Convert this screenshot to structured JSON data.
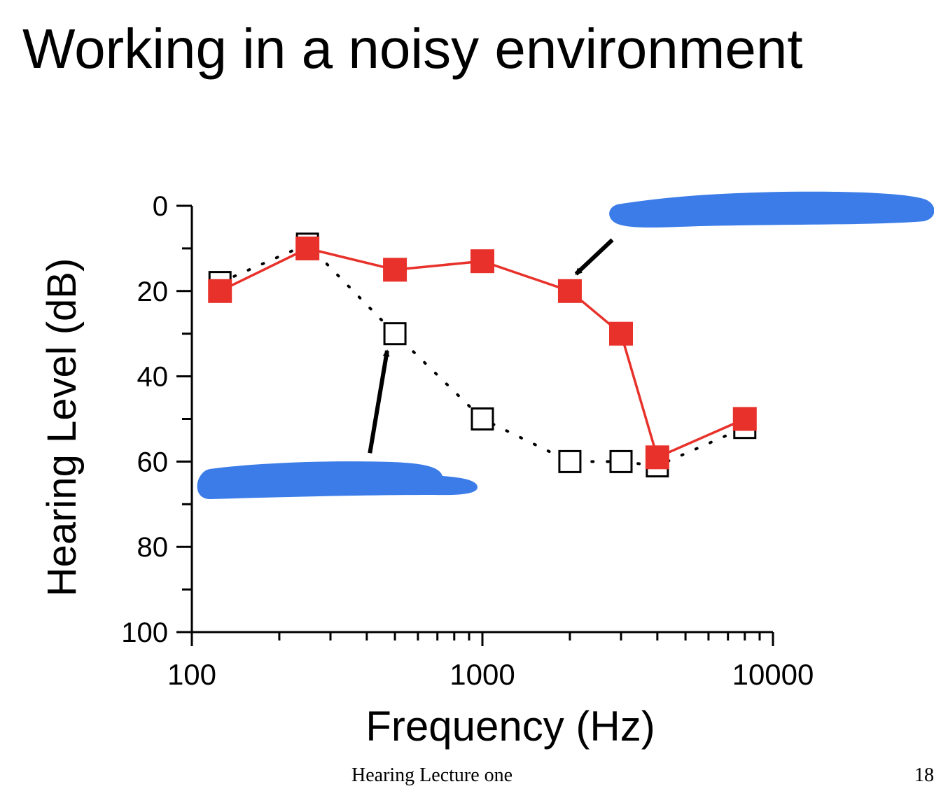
{
  "slide": {
    "title": "Working in a noisy environment",
    "footer_text": "Hearing Lecture one",
    "page_number": "18"
  },
  "chart_data": {
    "type": "line",
    "title": "",
    "xlabel": "Frequency (Hz)",
    "ylabel": "Hearing Level (dB)",
    "x_scale": "log",
    "xlim": [
      100,
      10000
    ],
    "ylim": [
      0,
      100
    ],
    "y_inverted": true,
    "x_ticks": [
      "100",
      "1000",
      "10000"
    ],
    "y_ticks": [
      "0",
      "20",
      "40",
      "60",
      "80",
      "100"
    ],
    "grid": false,
    "series": [
      {
        "style": "dotted line, open black squares",
        "color": "#000000",
        "x": [
          125,
          250,
          500,
          1000,
          2000,
          3000,
          4000,
          8000
        ],
        "y": [
          18,
          9,
          30,
          50,
          60,
          60,
          61,
          52
        ]
      },
      {
        "style": "solid line, filled red squares",
        "color": "#e8312a",
        "x": [
          125,
          250,
          500,
          1000,
          2000,
          3000,
          4000,
          8000
        ],
        "y": [
          20,
          10,
          15,
          13,
          20,
          30,
          59,
          50
        ]
      }
    ],
    "annotations": [
      {
        "type": "arrow",
        "from": [
          2800,
          8
        ],
        "to": [
          2100,
          16
        ]
      },
      {
        "type": "arrow",
        "from": [
          410,
          58
        ],
        "to": [
          470,
          34
        ]
      }
    ],
    "redactions": [
      {
        "color": "#3b7ce8",
        "near": "top-right"
      },
      {
        "color": "#3b7ce8",
        "near": "bottom-left"
      }
    ]
  }
}
